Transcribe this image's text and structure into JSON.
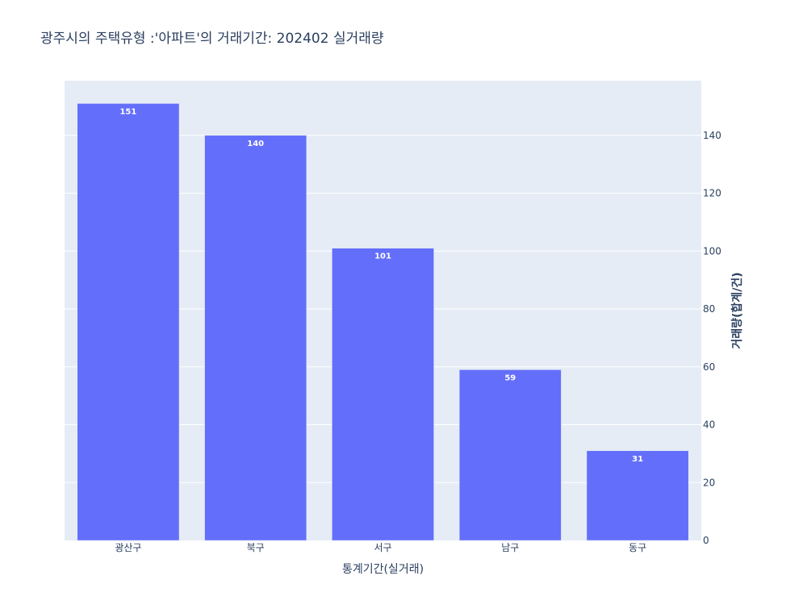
{
  "chart_data": {
    "type": "bar",
    "title": "광주시의 주택유형 :'아파트'의 거래기간: 202402 실거래량",
    "xlabel": "통계기간(실거래)",
    "ylabel": "거래량(합계/건)",
    "categories": [
      "광산구",
      "북구",
      "서구",
      "남구",
      "동구"
    ],
    "values": [
      151,
      140,
      101,
      59,
      31
    ],
    "ylim": [
      0,
      158.9
    ],
    "yticks": [
      0,
      20,
      40,
      60,
      80,
      100,
      120,
      140
    ],
    "y_axis_side": "right",
    "grid": true,
    "bar_color": "#636efa",
    "plot_bgcolor": "#e5ecf6"
  }
}
